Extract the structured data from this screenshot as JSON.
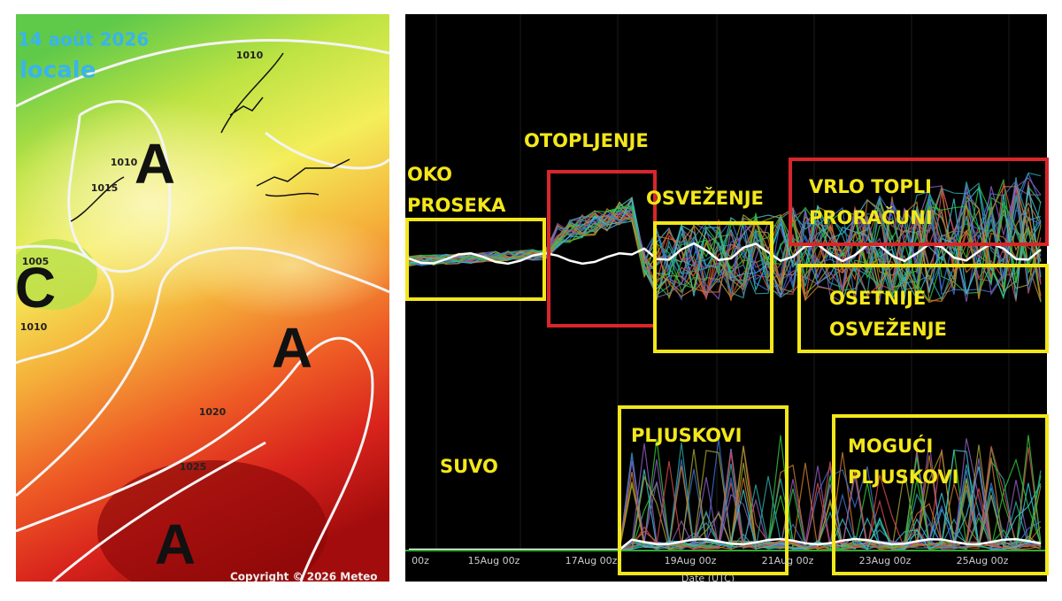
{
  "map": {
    "date": "i 14 août 2026",
    "subtitle": "locale",
    "isobar_labels": [
      "1010",
      "1010",
      "1015",
      "1005",
      "1010",
      "1020",
      "1025"
    ],
    "pressure_centers": [
      "A",
      "A",
      "A",
      "C"
    ],
    "copyright": "Copyright © 2026 Meteo"
  },
  "chart": {
    "annotations": [
      {
        "lines": [
          "OKO",
          "PROSEKA"
        ],
        "box": "yellow"
      },
      {
        "lines": [
          "OTOPLJENJE"
        ],
        "box": "red"
      },
      {
        "lines": [
          "OSVEŽENJE"
        ],
        "box": "yellow"
      },
      {
        "lines": [
          "VRLO TOPLI",
          "PRORAČUNI"
        ],
        "box": "red"
      },
      {
        "lines": [
          "OSETNIJE",
          "OSVEŽENJE"
        ],
        "box": "yellow"
      },
      {
        "lines": [
          "PLJUSKOVI"
        ],
        "box": "yellow"
      },
      {
        "lines": [
          "SUVO"
        ],
        "box": "none"
      },
      {
        "lines": [
          "MOGUĆI",
          "PLJUSKOVI"
        ],
        "box": "yellow"
      }
    ],
    "x_tick_labels": [
      "00z",
      "15Aug 00z",
      "17Aug 00z",
      "19Aug 00z",
      "21Aug 00z",
      "23Aug 00z",
      "25Aug 00z"
    ],
    "x_label": "Date (UTC)"
  }
}
